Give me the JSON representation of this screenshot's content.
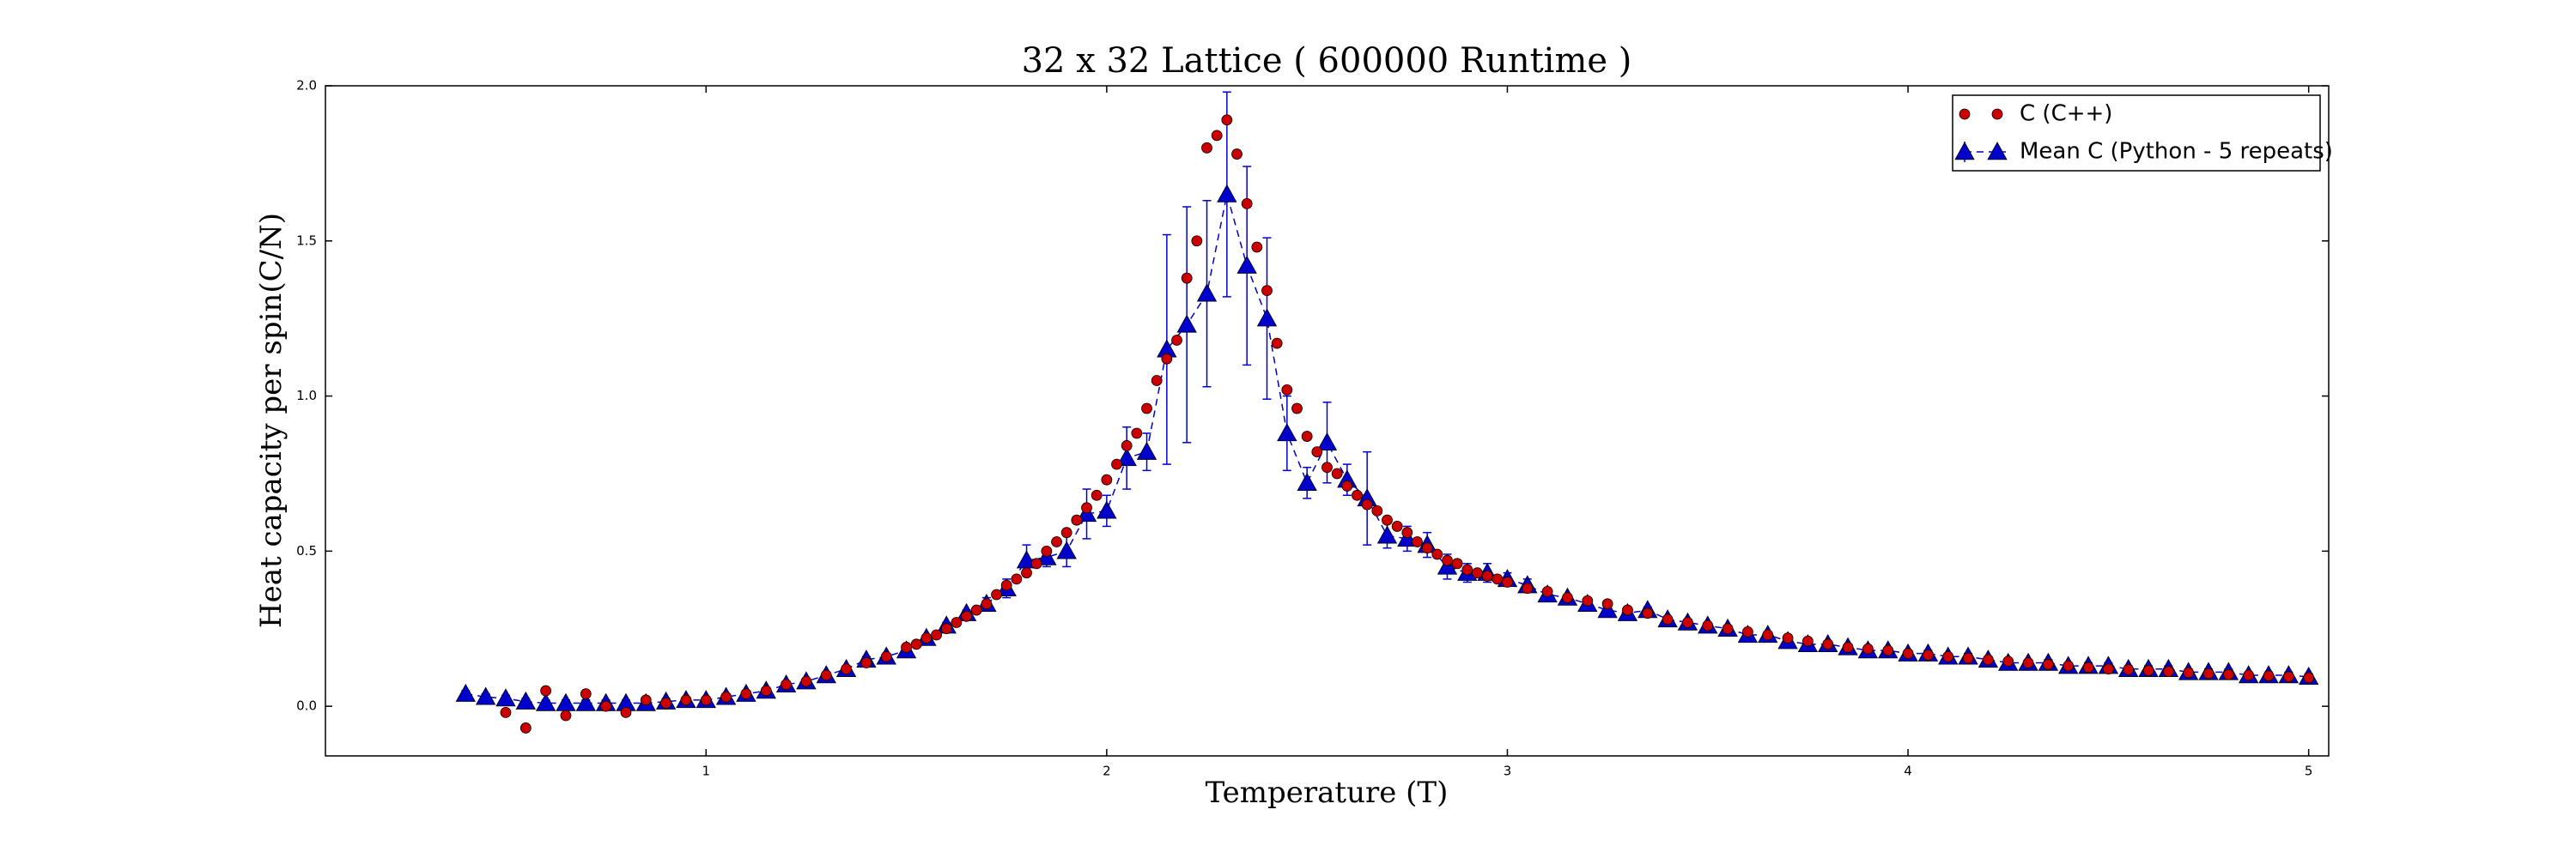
{
  "chart_data": {
    "type": "scatter",
    "title": "32 x 32 Lattice ( 600000 Runtime )",
    "xlabel": "Temperature (T)",
    "ylabel": "Heat capacity per spin(C/N)",
    "xlim": [
      0.05,
      5.05
    ],
    "ylim": [
      -0.16,
      2.0
    ],
    "xticks": [
      1,
      2,
      3,
      4,
      5
    ],
    "yticks": [
      {
        "value": 0,
        "label": "0.0"
      },
      0.5,
      {
        "value": 1,
        "label": "1.0"
      },
      1.5,
      {
        "value": 2,
        "label": "2.0"
      }
    ],
    "legend": "upper right",
    "series": [
      {
        "name": "C (C++)",
        "color": "#cc0000",
        "marker": "circle",
        "x": [
          0.5,
          0.55,
          0.6,
          0.65,
          0.7,
          0.75,
          0.8,
          0.85,
          0.9,
          0.95,
          1.0,
          1.05,
          1.1,
          1.15,
          1.2,
          1.25,
          1.3,
          1.35,
          1.4,
          1.45,
          1.5,
          1.525,
          1.55,
          1.575,
          1.6,
          1.625,
          1.65,
          1.675,
          1.7,
          1.725,
          1.75,
          1.775,
          1.8,
          1.825,
          1.85,
          1.875,
          1.9,
          1.925,
          1.95,
          1.975,
          2.0,
          2.025,
          2.05,
          2.075,
          2.1,
          2.125,
          2.15,
          2.175,
          2.2,
          2.225,
          2.25,
          2.275,
          2.3,
          2.325,
          2.35,
          2.375,
          2.4,
          2.425,
          2.45,
          2.475,
          2.5,
          2.525,
          2.55,
          2.575,
          2.6,
          2.625,
          2.65,
          2.675,
          2.7,
          2.725,
          2.75,
          2.775,
          2.8,
          2.825,
          2.85,
          2.875,
          2.9,
          2.925,
          2.95,
          2.975,
          3.0,
          3.05,
          3.1,
          3.15,
          3.2,
          3.25,
          3.3,
          3.35,
          3.4,
          3.45,
          3.5,
          3.55,
          3.6,
          3.65,
          3.7,
          3.75,
          3.8,
          3.85,
          3.9,
          3.95,
          4.0,
          4.05,
          4.1,
          4.15,
          4.2,
          4.25,
          4.3,
          4.35,
          4.4,
          4.45,
          4.5,
          4.55,
          4.6,
          4.65,
          4.7,
          4.75,
          4.8,
          4.85,
          4.9,
          4.95,
          5.0
        ],
        "values": [
          -0.02,
          -0.07,
          0.05,
          -0.03,
          0.04,
          0.0,
          -0.02,
          0.02,
          0.01,
          0.02,
          0.02,
          0.03,
          0.04,
          0.05,
          0.07,
          0.08,
          0.1,
          0.12,
          0.14,
          0.16,
          0.19,
          0.2,
          0.22,
          0.23,
          0.25,
          0.27,
          0.29,
          0.31,
          0.33,
          0.36,
          0.39,
          0.41,
          0.43,
          0.46,
          0.5,
          0.53,
          0.56,
          0.6,
          0.64,
          0.68,
          0.73,
          0.78,
          0.84,
          0.88,
          0.96,
          1.05,
          1.12,
          1.18,
          1.38,
          1.5,
          1.8,
          1.84,
          1.89,
          1.78,
          1.62,
          1.48,
          1.34,
          1.17,
          1.02,
          0.96,
          0.87,
          0.82,
          0.77,
          0.75,
          0.71,
          0.68,
          0.65,
          0.63,
          0.6,
          0.58,
          0.56,
          0.53,
          0.51,
          0.49,
          0.47,
          0.46,
          0.44,
          0.43,
          0.42,
          0.41,
          0.4,
          0.38,
          0.37,
          0.35,
          0.34,
          0.33,
          0.31,
          0.3,
          0.28,
          0.27,
          0.26,
          0.25,
          0.24,
          0.23,
          0.22,
          0.21,
          0.2,
          0.19,
          0.185,
          0.18,
          0.17,
          0.165,
          0.16,
          0.155,
          0.15,
          0.145,
          0.14,
          0.135,
          0.13,
          0.125,
          0.12,
          0.118,
          0.115,
          0.112,
          0.108,
          0.105,
          0.102,
          0.1,
          0.098,
          0.095,
          0.092
        ]
      },
      {
        "name": "Mean C (Python - 5 repeats)",
        "color": "#0000cc",
        "marker": "triangle",
        "line": "dashed",
        "x": [
          0.4,
          0.45,
          0.5,
          0.55,
          0.6,
          0.65,
          0.7,
          0.75,
          0.8,
          0.85,
          0.9,
          0.95,
          1.0,
          1.05,
          1.1,
          1.15,
          1.2,
          1.25,
          1.3,
          1.35,
          1.4,
          1.45,
          1.5,
          1.55,
          1.6,
          1.65,
          1.7,
          1.75,
          1.8,
          1.85,
          1.9,
          1.95,
          2.0,
          2.05,
          2.1,
          2.15,
          2.2,
          2.25,
          2.3,
          2.35,
          2.4,
          2.45,
          2.5,
          2.55,
          2.6,
          2.65,
          2.7,
          2.75,
          2.8,
          2.85,
          2.9,
          2.95,
          3.0,
          3.05,
          3.1,
          3.15,
          3.2,
          3.25,
          3.3,
          3.35,
          3.4,
          3.45,
          3.5,
          3.55,
          3.6,
          3.65,
          3.7,
          3.75,
          3.8,
          3.85,
          3.9,
          3.95,
          4.0,
          4.05,
          4.1,
          4.15,
          4.2,
          4.25,
          4.3,
          4.35,
          4.4,
          4.45,
          4.5,
          4.55,
          4.6,
          4.65,
          4.7,
          4.75,
          4.8,
          4.85,
          4.9,
          4.95,
          5.0
        ],
        "values": [
          0.04,
          0.03,
          0.025,
          0.015,
          0.01,
          0.01,
          0.01,
          0.01,
          0.01,
          0.01,
          0.015,
          0.02,
          0.02,
          0.03,
          0.04,
          0.05,
          0.07,
          0.08,
          0.1,
          0.12,
          0.15,
          0.16,
          0.18,
          0.22,
          0.26,
          0.3,
          0.33,
          0.38,
          0.47,
          0.48,
          0.5,
          0.62,
          0.63,
          0.8,
          0.82,
          1.15,
          1.23,
          1.33,
          1.65,
          1.42,
          1.25,
          0.88,
          0.72,
          0.85,
          0.73,
          0.67,
          0.55,
          0.54,
          0.52,
          0.45,
          0.43,
          0.43,
          0.41,
          0.39,
          0.36,
          0.35,
          0.33,
          0.31,
          0.3,
          0.31,
          0.28,
          0.27,
          0.26,
          0.25,
          0.23,
          0.23,
          0.21,
          0.2,
          0.2,
          0.19,
          0.18,
          0.18,
          0.17,
          0.17,
          0.16,
          0.16,
          0.15,
          0.14,
          0.14,
          0.14,
          0.13,
          0.13,
          0.13,
          0.12,
          0.12,
          0.12,
          0.11,
          0.11,
          0.11,
          0.1,
          0.1,
          0.1,
          0.095
        ],
        "errors": [
          0.01,
          0.01,
          0.01,
          0.01,
          0.01,
          0.01,
          0.01,
          0.01,
          0.01,
          0.01,
          0.01,
          0.01,
          0.01,
          0.01,
          0.01,
          0.01,
          0.01,
          0.01,
          0.01,
          0.01,
          0.01,
          0.01,
          0.01,
          0.01,
          0.01,
          0.01,
          0.02,
          0.03,
          0.05,
          0.03,
          0.05,
          0.08,
          0.05,
          0.1,
          0.06,
          0.37,
          0.38,
          0.3,
          0.33,
          0.32,
          0.26,
          0.12,
          0.05,
          0.13,
          0.05,
          0.15,
          0.04,
          0.04,
          0.04,
          0.04,
          0.03,
          0.03,
          0.02,
          0.02,
          0.01,
          0.01,
          0.01,
          0.01,
          0.01,
          0.01,
          0.01,
          0.01,
          0.01,
          0.01,
          0.01,
          0.01,
          0.01,
          0.01,
          0.01,
          0.01,
          0.01,
          0.01,
          0.01,
          0.01,
          0.01,
          0.01,
          0.01,
          0.01,
          0.01,
          0.01,
          0.01,
          0.01,
          0.01,
          0.01,
          0.01,
          0.01,
          0.01,
          0.01,
          0.01,
          0.01,
          0.01,
          0.01,
          0.01
        ]
      }
    ]
  }
}
